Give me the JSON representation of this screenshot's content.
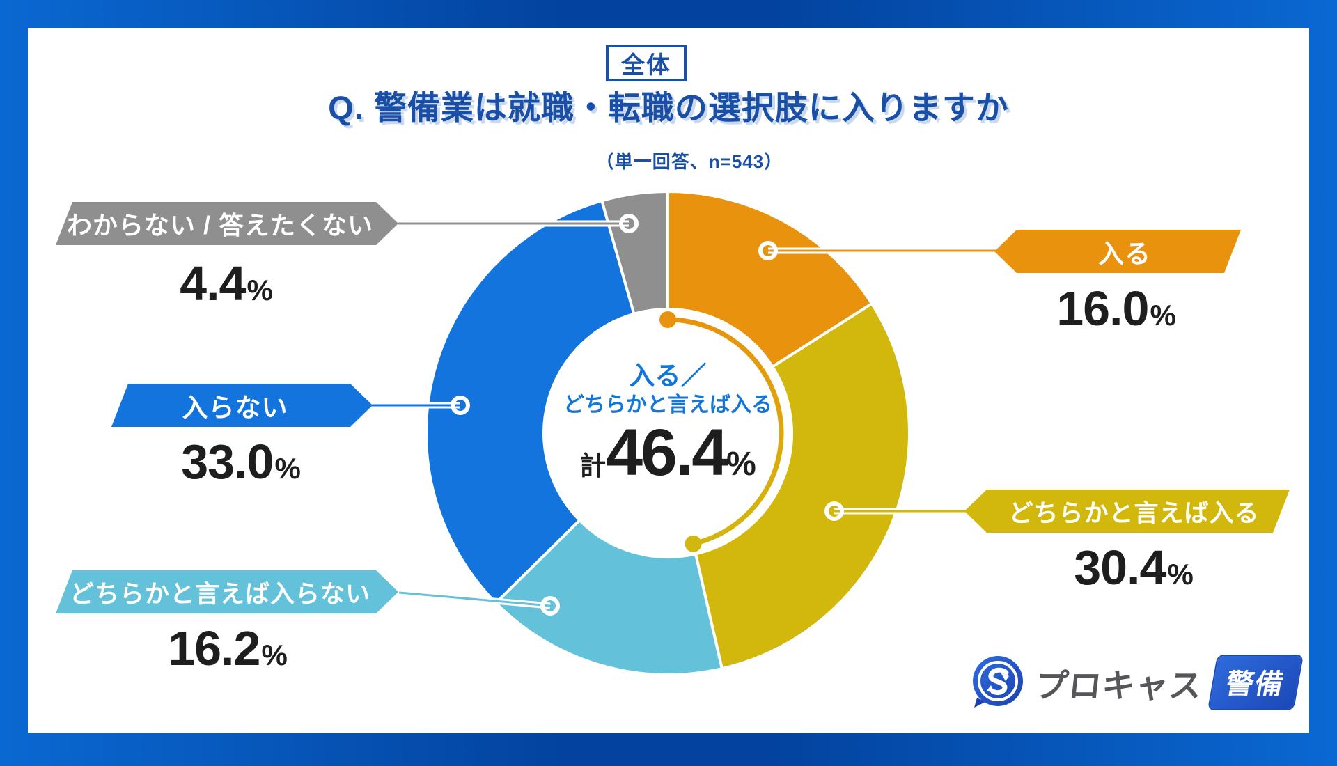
{
  "header": {
    "tag": "全体",
    "title": "Q. 警備業は就職・転職の選択肢に入りますか",
    "subtitle": "（単一回答、n=543）"
  },
  "chart_data": {
    "type": "pie",
    "variant": "donut",
    "title": "Q. 警備業は就職・転職の選択肢に入りますか",
    "subtitle": "（単一回答、n=543）",
    "answer_type": "単一回答",
    "n": 543,
    "start_angle": "12時の位置から時計回り",
    "donut_hole_ratio": 0.51,
    "legend_position": "callout-ribbons",
    "segments": [
      {
        "label": "入る",
        "value": 16.0,
        "display": "16.0",
        "unit": "%",
        "color": "#e8920d"
      },
      {
        "label": "どちらかと言えば入る",
        "value": 30.4,
        "display": "30.4",
        "unit": "%",
        "color": "#d2b70d"
      },
      {
        "label": "どちらかと言えば入らない",
        "value": 16.2,
        "display": "16.2",
        "unit": "%",
        "color": "#63c1da"
      },
      {
        "label": "入らない",
        "value": 33.0,
        "display": "33.0",
        "unit": "%",
        "color": "#1274dc"
      },
      {
        "label": "わからない / 答えたくない",
        "value": 4.4,
        "display": "4.4",
        "unit": "%",
        "color": "#8f8f8f"
      }
    ],
    "center_label": {
      "line1": "入る／",
      "line2": "どちらかと言えば入る",
      "prefix": "計",
      "value": "46.4",
      "unit": "%",
      "total_percent": 46.4
    }
  },
  "logo": {
    "brand": "プロキャス",
    "badge": "警備",
    "icon": "s-speech-bubble-icon"
  }
}
